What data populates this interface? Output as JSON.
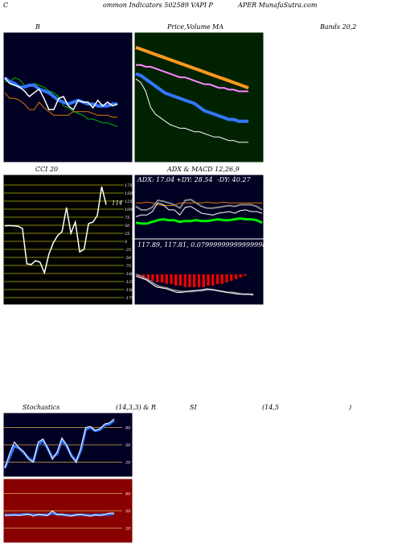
{
  "header": {
    "left": "C",
    "middle": "ommon  Indicators 502589 VAPI P",
    "right": "APER MunafaSutra.com"
  },
  "titles": {
    "bb_left": "B",
    "price_mid": "Price,",
    "volume": "Volume",
    "ma": "MA",
    "bands": "Bands 20,2",
    "cci": "CCI 20",
    "adx_macd": "ADX  & MACD 12,26,9",
    "stoch_a": "Stochastics",
    "stoch_b": "(14,3,3) & R",
    "stoch_c": "SI",
    "stoch_d": "(14,5",
    "stoch_e": ")"
  },
  "adx_readout": {
    "adx": "ADX: 17.04",
    "pdi": "+DY: 28.54",
    "mdi": "-DY: 40.27"
  },
  "macd_readout": "117.89,  117.81,  0.07999999999999998",
  "watermark": "MunafaSutra.com",
  "colors": {
    "dark_bg": "#000022",
    "ma_bg": "#002200",
    "cci_bg": "#000000",
    "rsi_bg": "#880000",
    "blue": "#3377ff",
    "white": "#ffffff",
    "green": "#00bb00",
    "orange": "#dd7700",
    "cci_line": "#888800"
  },
  "chart_data": [
    {
      "type": "line",
      "panel": "bollinger",
      "series": [
        {
          "values": [
            88,
            88,
            90,
            89,
            86,
            86,
            87,
            86,
            85,
            83,
            82,
            80,
            75,
            74,
            72,
            71,
            70,
            68,
            68,
            67,
            66,
            66,
            65,
            64
          ]
        },
        {
          "values": [
            90,
            88,
            87,
            85,
            85,
            86,
            86,
            84,
            83,
            82,
            80,
            78,
            77,
            76,
            77,
            78,
            77,
            76,
            76,
            75,
            75,
            75,
            76,
            76
          ]
        },
        {
          "values": [
            90,
            87,
            86,
            85,
            83,
            80,
            82,
            84,
            79,
            73,
            73,
            79,
            80,
            75,
            73,
            78,
            77,
            77,
            74,
            78,
            75,
            77,
            75,
            76
          ]
        },
        {
          "values": [
            82,
            79,
            79,
            78,
            76,
            73,
            73,
            77,
            74,
            72,
            70,
            70,
            70,
            70,
            72,
            72,
            72,
            72,
            71,
            70,
            70,
            70,
            69,
            69
          ]
        }
      ]
    },
    {
      "type": "line",
      "panel": "moving-averages",
      "series": [
        {
          "values": [
            100,
            99,
            98,
            97,
            96,
            95,
            94,
            93,
            92,
            91,
            90,
            89,
            88,
            87,
            86,
            85,
            84,
            83,
            82,
            81,
            80,
            79,
            78,
            77
          ]
        },
        {
          "values": [
            90,
            90,
            89,
            89,
            88,
            87,
            86,
            85,
            84,
            83,
            83,
            82,
            81,
            80,
            79,
            79,
            78,
            77,
            77,
            76,
            76,
            75,
            75,
            75
          ]
        },
        {
          "values": [
            85,
            84,
            82,
            80,
            78,
            76,
            74,
            73,
            72,
            71,
            70,
            69,
            68,
            66,
            64,
            63,
            62,
            61,
            60,
            59,
            59,
            58,
            58,
            58
          ]
        },
        {
          "values": [
            82,
            80,
            75,
            66,
            62,
            60,
            58,
            56,
            55,
            54,
            54,
            53,
            52,
            52,
            51,
            50,
            49,
            49,
            48,
            47,
            47,
            46,
            46,
            46
          ]
        }
      ]
    },
    {
      "type": "line",
      "panel": "cci",
      "ticks": [
        175,
        150,
        125,
        100,
        75,
        50,
        25,
        0,
        -25,
        -50,
        -75,
        -100,
        -125,
        -150,
        -175
      ],
      "ylim": [
        -175,
        175
      ],
      "last_label": "114",
      "values": [
        48,
        49,
        48,
        47,
        40,
        -70,
        -72,
        -60,
        -65,
        -98,
        -40,
        -5,
        18,
        30,
        105,
        25,
        60,
        -33,
        -25,
        55,
        60,
        80,
        170,
        114
      ]
    },
    {
      "type": "line",
      "panel": "adx",
      "series": [
        {
          "values": [
            17,
            16,
            16,
            18,
            20,
            21,
            20,
            20,
            18,
            19,
            19,
            20,
            19,
            19,
            20,
            21,
            20,
            20,
            21,
            22,
            21,
            21,
            20,
            17
          ]
        },
        {
          "values": [
            24,
            26,
            26,
            30,
            40,
            38,
            32,
            32,
            26,
            35,
            36,
            32,
            28,
            27,
            26,
            28,
            29,
            30,
            28,
            31,
            32,
            30,
            30,
            28
          ]
        },
        {
          "values": [
            40,
            40,
            41,
            40,
            38,
            37,
            37,
            37,
            40,
            40,
            40,
            40,
            40,
            41,
            40,
            40,
            41,
            40,
            40,
            40,
            40,
            40,
            40,
            40
          ]
        },
        {
          "values": [
            36,
            32,
            32,
            35,
            43,
            42,
            40,
            38,
            34,
            43,
            44,
            40,
            36,
            34,
            34,
            35,
            36,
            37,
            36,
            38,
            38,
            38,
            36,
            32
          ]
        }
      ]
    },
    {
      "type": "bar",
      "panel": "macd",
      "values": [
        2,
        3,
        4,
        4,
        5,
        5,
        6,
        6,
        7,
        7,
        8,
        8,
        8,
        8,
        8,
        7,
        7,
        6,
        6,
        5,
        4,
        3,
        2,
        1
      ]
    },
    {
      "type": "line",
      "panel": "stochastics",
      "ticks": [
        80,
        50,
        20
      ],
      "ylim": [
        0,
        100
      ],
      "series": [
        {
          "values": [
            10,
            35,
            55,
            45,
            38,
            25,
            20,
            55,
            60,
            45,
            25,
            38,
            62,
            50,
            30,
            20,
            45,
            80,
            82,
            75,
            78,
            86,
            88,
            95
          ]
        },
        {
          "values": [
            10,
            28,
            48,
            44,
            36,
            27,
            22,
            50,
            58,
            44,
            28,
            34,
            58,
            48,
            32,
            22,
            40,
            76,
            80,
            74,
            76,
            84,
            86,
            92
          ]
        }
      ]
    },
    {
      "type": "line",
      "panel": "rsi",
      "ticks": [
        80,
        50,
        20
      ],
      "ylim": [
        0,
        100
      ],
      "series": [
        {
          "values": [
            42,
            42,
            43,
            42,
            43,
            44,
            41,
            44,
            43,
            42,
            50,
            43,
            44,
            42,
            41,
            43,
            44,
            42,
            41,
            43,
            42,
            44,
            46,
            46
          ]
        },
        {
          "values": [
            43,
            43,
            43,
            43,
            44,
            44,
            43,
            43,
            43,
            43,
            46,
            44,
            43,
            43,
            42,
            43,
            43,
            43,
            42,
            43,
            43,
            43,
            44,
            45
          ]
        }
      ]
    }
  ]
}
